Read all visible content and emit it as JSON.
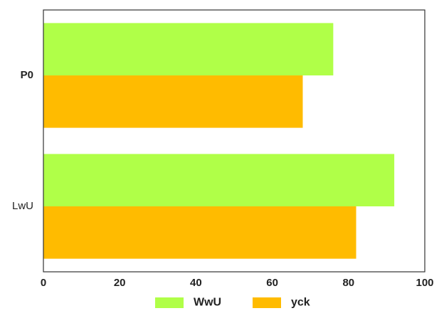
{
  "chart_data": {
    "type": "bar",
    "orientation": "horizontal",
    "categories": [
      "P0",
      "LwU"
    ],
    "category_label_bold": [
      true,
      false
    ],
    "series": [
      {
        "name": "WwU",
        "color": "#b0ff48",
        "values": [
          76,
          92
        ]
      },
      {
        "name": "yck",
        "color": "#ffbb00",
        "values": [
          68,
          82
        ]
      }
    ],
    "xlim": [
      0,
      100
    ],
    "xticks": [
      0,
      20,
      40,
      60,
      80,
      100
    ],
    "title": "",
    "xlabel": "",
    "ylabel": "",
    "grid": false,
    "legend_position": "bottom-center"
  }
}
